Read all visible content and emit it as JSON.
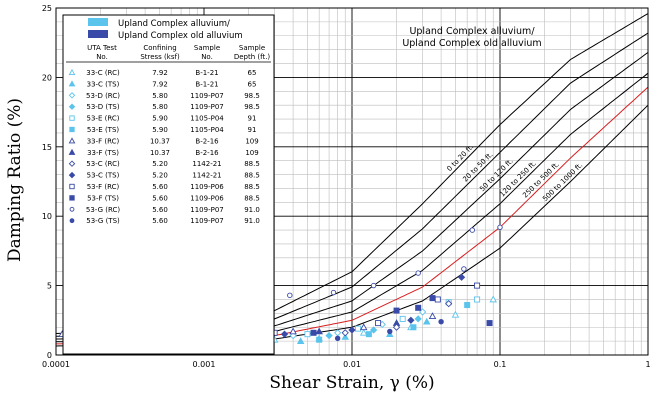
{
  "chart_data": {
    "type": "scatter",
    "x_scale": "log",
    "xlim": [
      0.0001,
      1
    ],
    "ylim": [
      0,
      25
    ],
    "xlabel": "Shear Strain, γ (%)",
    "ylabel": "Damping Ratio (%)",
    "x_ticks": [
      "0.0001",
      "0.001",
      "0.01",
      "0.1",
      "1"
    ],
    "y_ticks": [
      "0",
      "5",
      "10",
      "15",
      "20",
      "25"
    ],
    "grid": true,
    "legend_position": "top-left",
    "legend_top": [
      {
        "label": "Upland Complex alluvium/",
        "color": "#5bc4ec"
      },
      {
        "label": "Upland Complex old alluvium",
        "color": "#3a4aa8"
      }
    ],
    "table_headers": [
      "UTA Test No.",
      "Confining Stress (ksf)",
      "Sample No.",
      "Sample Depth (ft.)"
    ],
    "table_header_lines": [
      [
        "UTA Test",
        "Confining",
        "Sample",
        "Sample"
      ],
      [
        "No.",
        "Stress (ksf)",
        "No.",
        "Depth (ft.)"
      ]
    ],
    "table_rows": [
      {
        "symbol": "△",
        "color": "#5bc4ec",
        "test": "33-C (RC)",
        "stress": "7.92",
        "sample": "B-1-21",
        "depth": "65"
      },
      {
        "symbol": "▲",
        "color": "#5bc4ec",
        "test": "33-C (TS)",
        "stress": "7.92",
        "sample": "B-1-21",
        "depth": "65"
      },
      {
        "symbol": "◇",
        "color": "#5bc4ec",
        "test": "53-D (RC)",
        "stress": "5.80",
        "sample": "1109-P07",
        "depth": "98.5"
      },
      {
        "symbol": "◆",
        "color": "#5bc4ec",
        "test": "53-D (TS)",
        "stress": "5.80",
        "sample": "1109-P07",
        "depth": "98.5"
      },
      {
        "symbol": "□",
        "color": "#5bc4ec",
        "test": "53-E (RC)",
        "stress": "5.90",
        "sample": "1105-P04",
        "depth": "91"
      },
      {
        "symbol": "■",
        "color": "#5bc4ec",
        "test": "53-E (TS)",
        "stress": "5.90",
        "sample": "1105-P04",
        "depth": "91"
      },
      {
        "symbol": "△",
        "color": "#3a4aa8",
        "test": "33-F (RC)",
        "stress": "10.37",
        "sample": "B-2-16",
        "depth": "109"
      },
      {
        "symbol": "▲",
        "color": "#3a4aa8",
        "test": "33-F (TS)",
        "stress": "10.37",
        "sample": "B-2-16",
        "depth": "109"
      },
      {
        "symbol": "◇",
        "color": "#3a4aa8",
        "test": "53-C (RC)",
        "stress": "5.20",
        "sample": "1142-21",
        "depth": "88.5"
      },
      {
        "symbol": "◆",
        "color": "#3a4aa8",
        "test": "53-C (TS)",
        "stress": "5.20",
        "sample": "1142-21",
        "depth": "88.5"
      },
      {
        "symbol": "□",
        "color": "#3a4aa8",
        "test": "53-F (RC)",
        "stress": "5.60",
        "sample": "1109-P06",
        "depth": "88.5"
      },
      {
        "symbol": "■",
        "color": "#3a4aa8",
        "test": "53-F (TS)",
        "stress": "5.60",
        "sample": "1109-P06",
        "depth": "88.5"
      },
      {
        "symbol": "○",
        "color": "#3a4aa8",
        "test": "53-G (RC)",
        "stress": "5.60",
        "sample": "1109-P07",
        "depth": "91.0"
      },
      {
        "symbol": "●",
        "color": "#3a4aa8",
        "test": "53-G (TS)",
        "stress": "5.60",
        "sample": "1109-P07",
        "depth": "91.0"
      }
    ],
    "annotation_lines": [
      "Upland Complex alluvium/",
      "Upland Complex old alluvium"
    ],
    "curves": [
      {
        "name": "0 to 20 ft.",
        "color": "#000000",
        "label_at": 0.057,
        "points": [
          [
            0.0001,
            1.55
          ],
          [
            0.0003,
            1.7
          ],
          [
            0.001,
            2.1
          ],
          [
            0.003,
            3.2
          ],
          [
            0.01,
            6.0
          ],
          [
            0.03,
            10.9
          ],
          [
            0.1,
            16.6
          ],
          [
            0.3,
            21.3
          ],
          [
            1,
            24.6
          ]
        ]
      },
      {
        "name": "20 to 50 ft.",
        "color": "#000000",
        "label_at": 0.075,
        "points": [
          [
            0.0001,
            1.35
          ],
          [
            0.0003,
            1.45
          ],
          [
            0.001,
            1.75
          ],
          [
            0.003,
            2.6
          ],
          [
            0.01,
            4.9
          ],
          [
            0.03,
            9.1
          ],
          [
            0.1,
            14.6
          ],
          [
            0.3,
            19.6
          ],
          [
            1,
            23.2
          ]
        ]
      },
      {
        "name": "50 to 120 ft.",
        "color": "#000000",
        "label_at": 0.1,
        "points": [
          [
            0.0001,
            1.15
          ],
          [
            0.0003,
            1.22
          ],
          [
            0.001,
            1.45
          ],
          [
            0.003,
            2.1
          ],
          [
            0.01,
            3.9
          ],
          [
            0.03,
            7.5
          ],
          [
            0.1,
            12.7
          ],
          [
            0.3,
            17.7
          ],
          [
            1,
            21.8
          ]
        ]
      },
      {
        "name": "120 to 250 ft.",
        "color": "#000000",
        "label_at": 0.14,
        "points": [
          [
            0.0001,
            0.95
          ],
          [
            0.0003,
            1.0
          ],
          [
            0.001,
            1.2
          ],
          [
            0.003,
            1.7
          ],
          [
            0.01,
            3.1
          ],
          [
            0.03,
            6.1
          ],
          [
            0.1,
            10.9
          ],
          [
            0.3,
            15.9
          ],
          [
            1,
            20.3
          ]
        ]
      },
      {
        "name": "250 to 500 ft.",
        "color": "#d81e1e",
        "label_at": 0.2,
        "points": [
          [
            0.0001,
            0.8
          ],
          [
            0.0003,
            0.84
          ],
          [
            0.001,
            1.0
          ],
          [
            0.003,
            1.4
          ],
          [
            0.01,
            2.5
          ],
          [
            0.03,
            4.9
          ],
          [
            0.1,
            9.2
          ],
          [
            0.3,
            14.2
          ],
          [
            1,
            19.3
          ]
        ]
      },
      {
        "name": "500 to 1000 ft.",
        "color": "#000000",
        "label_at": 0.28,
        "points": [
          [
            0.0001,
            0.65
          ],
          [
            0.0003,
            0.7
          ],
          [
            0.001,
            0.82
          ],
          [
            0.003,
            1.15
          ],
          [
            0.01,
            2.0
          ],
          [
            0.03,
            3.9
          ],
          [
            0.1,
            7.7
          ],
          [
            0.3,
            12.5
          ],
          [
            1,
            18.0
          ]
        ]
      }
    ],
    "points": [
      {
        "s": "tri-o",
        "c": "#5bc4ec",
        "x": 0.00013,
        "y": 0.9
      },
      {
        "s": "tri-o",
        "c": "#5bc4ec",
        "x": 0.0002,
        "y": 0.8
      },
      {
        "s": "tri-o",
        "c": "#5bc4ec",
        "x": 0.0004,
        "y": 0.9
      },
      {
        "s": "tri-o",
        "c": "#5bc4ec",
        "x": 0.0008,
        "y": 1.0
      },
      {
        "s": "tri-o",
        "c": "#5bc4ec",
        "x": 0.0015,
        "y": 0.9
      },
      {
        "s": "tri-o",
        "c": "#5bc4ec",
        "x": 0.003,
        "y": 1.1
      },
      {
        "s": "tri-o",
        "c": "#5bc4ec",
        "x": 0.006,
        "y": 1.2
      },
      {
        "s": "tri-o",
        "c": "#5bc4ec",
        "x": 0.012,
        "y": 1.6
      },
      {
        "s": "tri-o",
        "c": "#5bc4ec",
        "x": 0.025,
        "y": 2.0
      },
      {
        "s": "tri-o",
        "c": "#5bc4ec",
        "x": 0.05,
        "y": 2.9
      },
      {
        "s": "tri-o",
        "c": "#5bc4ec",
        "x": 0.09,
        "y": 4.0
      },
      {
        "s": "tri-f",
        "c": "#5bc4ec",
        "x": 0.00035,
        "y": 0.6
      },
      {
        "s": "tri-f",
        "c": "#5bc4ec",
        "x": 0.0006,
        "y": 0.5
      },
      {
        "s": "tri-f",
        "c": "#5bc4ec",
        "x": 0.0011,
        "y": 0.7
      },
      {
        "s": "tri-f",
        "c": "#5bc4ec",
        "x": 0.0022,
        "y": 0.6
      },
      {
        "s": "tri-f",
        "c": "#5bc4ec",
        "x": 0.0045,
        "y": 1.0
      },
      {
        "s": "tri-f",
        "c": "#5bc4ec",
        "x": 0.009,
        "y": 1.3
      },
      {
        "s": "tri-f",
        "c": "#5bc4ec",
        "x": 0.018,
        "y": 1.5
      },
      {
        "s": "tri-f",
        "c": "#5bc4ec",
        "x": 0.032,
        "y": 2.4
      },
      {
        "s": "dia-o",
        "c": "#5bc4ec",
        "x": 0.00016,
        "y": 1.1
      },
      {
        "s": "dia-o",
        "c": "#5bc4ec",
        "x": 0.0005,
        "y": 1.2
      },
      {
        "s": "dia-o",
        "c": "#5bc4ec",
        "x": 0.0013,
        "y": 1.0
      },
      {
        "s": "dia-o",
        "c": "#5bc4ec",
        "x": 0.004,
        "y": 1.4
      },
      {
        "s": "dia-o",
        "c": "#5bc4ec",
        "x": 0.008,
        "y": 1.6
      },
      {
        "s": "dia-o",
        "c": "#5bc4ec",
        "x": 0.016,
        "y": 2.2
      },
      {
        "s": "dia-o",
        "c": "#5bc4ec",
        "x": 0.03,
        "y": 3.1
      },
      {
        "s": "dia-f",
        "c": "#5bc4ec",
        "x": 0.0003,
        "y": 0.9
      },
      {
        "s": "dia-f",
        "c": "#5bc4ec",
        "x": 0.0009,
        "y": 0.8
      },
      {
        "s": "dia-f",
        "c": "#5bc4ec",
        "x": 0.0025,
        "y": 1.1
      },
      {
        "s": "dia-f",
        "c": "#5bc4ec",
        "x": 0.007,
        "y": 1.4
      },
      {
        "s": "dia-f",
        "c": "#5bc4ec",
        "x": 0.014,
        "y": 1.8
      },
      {
        "s": "dia-f",
        "c": "#5bc4ec",
        "x": 0.028,
        "y": 2.6
      },
      {
        "s": "sq-o",
        "c": "#5bc4ec",
        "x": 0.00012,
        "y": 1.0
      },
      {
        "s": "sq-o",
        "c": "#5bc4ec",
        "x": 0.00045,
        "y": 1.1
      },
      {
        "s": "sq-o",
        "c": "#5bc4ec",
        "x": 0.0017,
        "y": 1.2
      },
      {
        "s": "sq-o",
        "c": "#5bc4ec",
        "x": 0.005,
        "y": 1.5
      },
      {
        "s": "sq-o",
        "c": "#5bc4ec",
        "x": 0.011,
        "y": 1.9
      },
      {
        "s": "sq-o",
        "c": "#5bc4ec",
        "x": 0.022,
        "y": 2.6
      },
      {
        "s": "sq-o",
        "c": "#5bc4ec",
        "x": 0.045,
        "y": 3.8
      },
      {
        "s": "sq-o",
        "c": "#5bc4ec",
        "x": 0.07,
        "y": 4.0
      },
      {
        "s": "sq-f",
        "c": "#5bc4ec",
        "x": 0.0007,
        "y": 0.7
      },
      {
        "s": "sq-f",
        "c": "#5bc4ec",
        "x": 0.002,
        "y": 0.9
      },
      {
        "s": "sq-f",
        "c": "#5bc4ec",
        "x": 0.006,
        "y": 1.1
      },
      {
        "s": "sq-f",
        "c": "#5bc4ec",
        "x": 0.013,
        "y": 1.5
      },
      {
        "s": "sq-f",
        "c": "#5bc4ec",
        "x": 0.026,
        "y": 2.0
      },
      {
        "s": "sq-f",
        "c": "#5bc4ec",
        "x": 0.06,
        "y": 3.6
      },
      {
        "s": "tri-o",
        "c": "#3a4aa8",
        "x": 0.00011,
        "y": 1.5
      },
      {
        "s": "tri-o",
        "c": "#3a4aa8",
        "x": 0.00025,
        "y": 1.6
      },
      {
        "s": "tri-o",
        "c": "#3a4aa8",
        "x": 0.0003,
        "y": 1.9
      },
      {
        "s": "tri-o",
        "c": "#3a4aa8",
        "x": 0.001,
        "y": 1.7
      },
      {
        "s": "tri-o",
        "c": "#3a4aa8",
        "x": 0.004,
        "y": 1.7
      },
      {
        "s": "tri-o",
        "c": "#3a4aa8",
        "x": 0.012,
        "y": 2.0
      },
      {
        "s": "tri-o",
        "c": "#3a4aa8",
        "x": 0.035,
        "y": 2.8
      },
      {
        "s": "tri-f",
        "c": "#3a4aa8",
        "x": 0.0002,
        "y": 1.3
      },
      {
        "s": "tri-f",
        "c": "#3a4aa8",
        "x": 0.0006,
        "y": 1.4
      },
      {
        "s": "tri-f",
        "c": "#3a4aa8",
        "x": 0.002,
        "y": 1.5
      },
      {
        "s": "tri-f",
        "c": "#3a4aa8",
        "x": 0.006,
        "y": 1.7
      },
      {
        "s": "tri-f",
        "c": "#3a4aa8",
        "x": 0.02,
        "y": 2.3
      },
      {
        "s": "dia-o",
        "c": "#3a4aa8",
        "x": 0.00014,
        "y": 1.2
      },
      {
        "s": "dia-o",
        "c": "#3a4aa8",
        "x": 0.0007,
        "y": 1.1
      },
      {
        "s": "dia-o",
        "c": "#3a4aa8",
        "x": 0.0028,
        "y": 1.3
      },
      {
        "s": "dia-o",
        "c": "#3a4aa8",
        "x": 0.009,
        "y": 1.6
      },
      {
        "s": "dia-o",
        "c": "#3a4aa8",
        "x": 0.02,
        "y": 2.0
      },
      {
        "s": "dia-o",
        "c": "#3a4aa8",
        "x": 0.045,
        "y": 3.7
      },
      {
        "s": "dia-f",
        "c": "#3a4aa8",
        "x": 0.00018,
        "y": 1.3
      },
      {
        "s": "dia-f",
        "c": "#3a4aa8",
        "x": 0.0012,
        "y": 1.3
      },
      {
        "s": "dia-f",
        "c": "#3a4aa8",
        "x": 0.0035,
        "y": 1.5
      },
      {
        "s": "dia-f",
        "c": "#3a4aa8",
        "x": 0.01,
        "y": 1.8
      },
      {
        "s": "dia-f",
        "c": "#3a4aa8",
        "x": 0.025,
        "y": 2.5
      },
      {
        "s": "dia-f",
        "c": "#3a4aa8",
        "x": 0.055,
        "y": 5.6
      },
      {
        "s": "sq-o",
        "c": "#3a4aa8",
        "x": 0.00012,
        "y": 1.4
      },
      {
        "s": "sq-o",
        "c": "#3a4aa8",
        "x": 0.0009,
        "y": 1.5
      },
      {
        "s": "sq-o",
        "c": "#3a4aa8",
        "x": 0.003,
        "y": 1.6
      },
      {
        "s": "sq-o",
        "c": "#3a4aa8",
        "x": 0.015,
        "y": 2.3
      },
      {
        "s": "sq-o",
        "c": "#3a4aa8",
        "x": 0.038,
        "y": 4.0
      },
      {
        "s": "sq-o",
        "c": "#3a4aa8",
        "x": 0.07,
        "y": 5.0
      },
      {
        "s": "sq-f",
        "c": "#3a4aa8",
        "x": 0.0015,
        "y": 1.3
      },
      {
        "s": "sq-f",
        "c": "#3a4aa8",
        "x": 0.0055,
        "y": 1.6
      },
      {
        "s": "sq-f",
        "c": "#3a4aa8",
        "x": 0.02,
        "y": 3.2
      },
      {
        "s": "sq-f",
        "c": "#3a4aa8",
        "x": 0.028,
        "y": 3.4
      },
      {
        "s": "sq-f",
        "c": "#3a4aa8",
        "x": 0.035,
        "y": 4.1
      },
      {
        "s": "sq-f",
        "c": "#3a4aa8",
        "x": 0.085,
        "y": 2.3
      },
      {
        "s": "cir-o",
        "c": "#3a4aa8",
        "x": 0.00023,
        "y": 4.3
      },
      {
        "s": "cir-o",
        "c": "#3a4aa8",
        "x": 0.00048,
        "y": 4.2
      },
      {
        "s": "cir-o",
        "c": "#3a4aa8",
        "x": 0.00095,
        "y": 4.2
      },
      {
        "s": "cir-o",
        "c": "#3a4aa8",
        "x": 0.0019,
        "y": 4.3
      },
      {
        "s": "cir-o",
        "c": "#3a4aa8",
        "x": 0.0038,
        "y": 4.3
      },
      {
        "s": "cir-o",
        "c": "#3a4aa8",
        "x": 0.0075,
        "y": 4.5
      },
      {
        "s": "cir-o",
        "c": "#3a4aa8",
        "x": 0.014,
        "y": 5.0
      },
      {
        "s": "cir-o",
        "c": "#3a4aa8",
        "x": 0.028,
        "y": 5.9
      },
      {
        "s": "cir-o",
        "c": "#3a4aa8",
        "x": 0.057,
        "y": 6.2
      },
      {
        "s": "cir-o",
        "c": "#3a4aa8",
        "x": 0.1,
        "y": 9.2
      },
      {
        "s": "cir-o",
        "c": "#3a4aa8",
        "x": 0.065,
        "y": 9.0
      },
      {
        "s": "cir-f",
        "c": "#3a4aa8",
        "x": 0.0002,
        "y": 0.8
      },
      {
        "s": "cir-f",
        "c": "#3a4aa8",
        "x": 0.0008,
        "y": 0.9
      },
      {
        "s": "cir-f",
        "c": "#3a4aa8",
        "x": 0.0025,
        "y": 1.0
      },
      {
        "s": "cir-f",
        "c": "#3a4aa8",
        "x": 0.008,
        "y": 1.2
      },
      {
        "s": "cir-f",
        "c": "#3a4aa8",
        "x": 0.018,
        "y": 1.7
      },
      {
        "s": "cir-f",
        "c": "#3a4aa8",
        "x": 0.04,
        "y": 2.4
      }
    ]
  }
}
